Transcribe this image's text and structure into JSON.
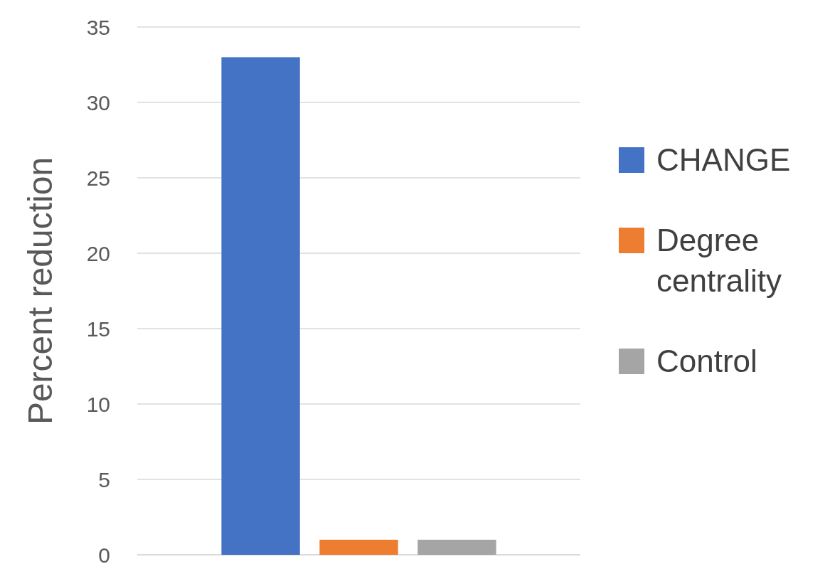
{
  "chart_data": {
    "type": "bar",
    "categories": [
      null
    ],
    "ylabel": "Percent reduction",
    "ylim": [
      0,
      35
    ],
    "yticks": [
      0,
      5,
      10,
      15,
      20,
      25,
      30,
      35
    ],
    "grid": "y",
    "legend": "right",
    "series": [
      {
        "name": "CHANGE",
        "color": "#4472c4",
        "values": [
          33
        ]
      },
      {
        "name": "Degree centrality",
        "color": "#ed7d31",
        "values": [
          1
        ]
      },
      {
        "name": "Control",
        "color": "#a5a5a5",
        "values": [
          1
        ]
      }
    ]
  }
}
